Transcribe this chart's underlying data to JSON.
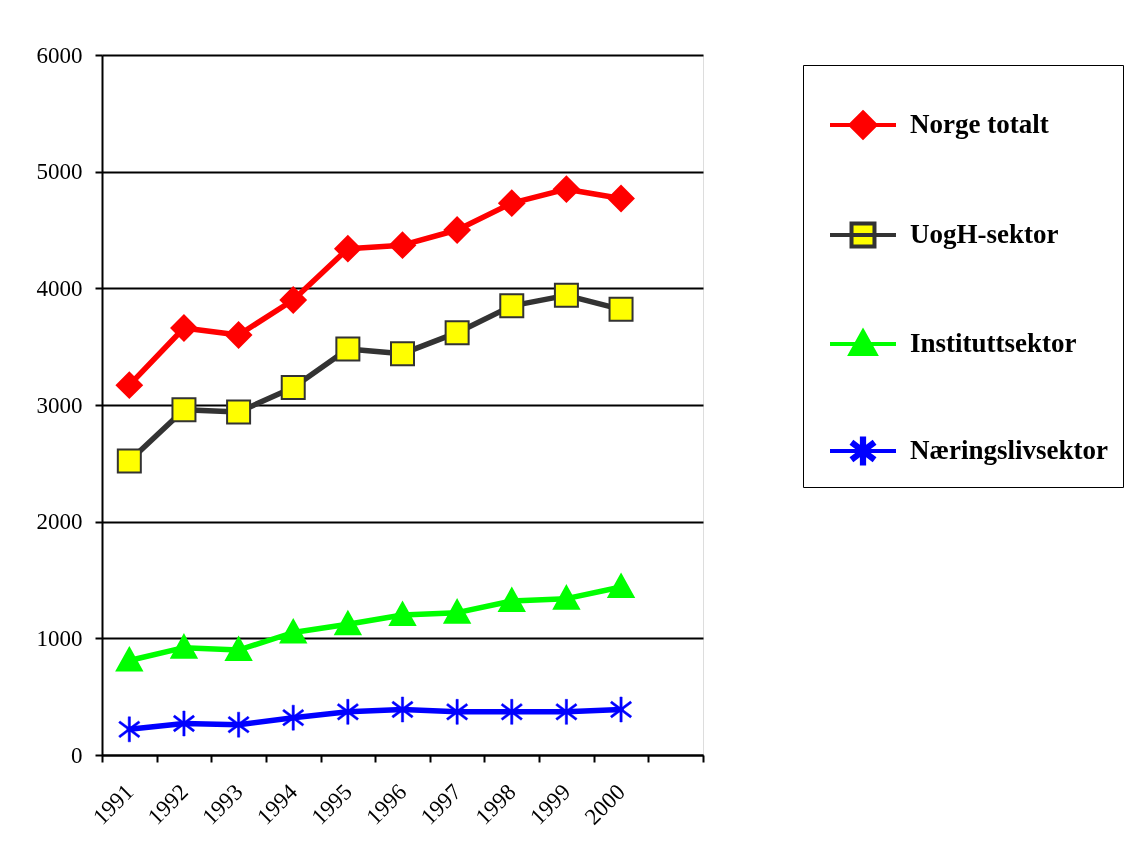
{
  "chart_data": {
    "type": "line",
    "categories": [
      "1991",
      "1992",
      "1993",
      "1994",
      "1995",
      "1996",
      "1997",
      "1998",
      "1999",
      "2000",
      null
    ],
    "ylim": [
      0,
      6000
    ],
    "yticks": [
      0,
      1000,
      2000,
      3000,
      4000,
      5000,
      6000
    ],
    "grid": "y",
    "legend": "top right",
    "line_style": "solid",
    "series": [
      {
        "name": "Norge totalt",
        "color": "#ff0000",
        "marker": "diamond",
        "values": [
          3170,
          3660,
          3600,
          3900,
          4340,
          4370,
          4500,
          4730,
          4850,
          4770,
          null
        ]
      },
      {
        "name": "UogH-sektor",
        "color": "#333333",
        "marker": "square",
        "colors": [
          "#ffff00",
          "#ffff00",
          "#ffff00",
          "#ffff00",
          "#ffff00",
          "#ffff00",
          "#ffff00",
          "#ffff00",
          "#ffff00",
          "#ffff00",
          null
        ],
        "values": [
          2520,
          2960,
          2940,
          3150,
          3480,
          3440,
          3620,
          3850,
          3940,
          3820,
          null
        ]
      },
      {
        "name": "Instituttsektor",
        "color": "#00ff00",
        "marker": "triangle",
        "values": [
          810,
          920,
          900,
          1050,
          1120,
          1200,
          1220,
          1320,
          1340,
          1440,
          null
        ]
      },
      {
        "name": "Næringslivsektor",
        "color": "#0000ff",
        "marker": "star",
        "values": [
          220,
          270,
          260,
          320,
          370,
          390,
          370,
          370,
          370,
          390,
          null
        ]
      }
    ]
  }
}
